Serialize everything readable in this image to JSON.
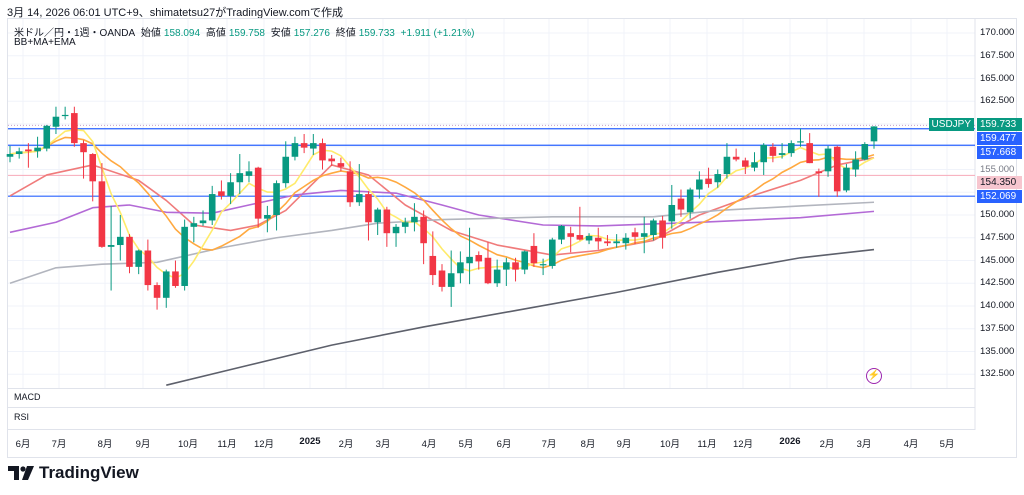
{
  "caption": "3月 14, 2026 06:01 UTC+9、shimatetsu27がTradingView.comで作成",
  "legend": {
    "symbol": "米ドル／円・1週・OANDA",
    "open_label": "始値",
    "open": "158.094",
    "high_label": "高値",
    "high": "159.758",
    "low_label": "安値",
    "low": "157.276",
    "close_label": "終値",
    "close": "159.733",
    "change": "+1.911 (+1.21%)"
  },
  "indicators_label": "BB+MA+EMA",
  "price_axis": [
    "170.000",
    "167.500",
    "165.000",
    "162.500",
    "155.000",
    "150.000",
    "147.500",
    "145.000",
    "142.500",
    "140.000",
    "137.500",
    "135.000",
    "132.500"
  ],
  "tags": {
    "symbol": "USDJPY",
    "last": "159.733",
    "level1": "159.477",
    "level2": "157.668",
    "level3": "154.350",
    "level4": "152.069"
  },
  "panes": {
    "macd": "MACD",
    "rsi": "RSI"
  },
  "time_axis": [
    "6月",
    "7月",
    "8月",
    "9月",
    "10月",
    "11月",
    "12月",
    "2025",
    "2月",
    "3月",
    "4月",
    "5月",
    "6月",
    "7月",
    "8月",
    "9月",
    "10月",
    "11月",
    "12月",
    "2026",
    "2月",
    "3月",
    "4月",
    "5月"
  ],
  "brand": "TradingView",
  "colors": {
    "up": "#089981",
    "down": "#f23645",
    "level": "#2962ff",
    "pink_level": "#f7a9b8"
  },
  "chart_data": {
    "type": "candlestick",
    "symbol": "USDJPY",
    "interval": "1W",
    "ylim": [
      130.5,
      171
    ],
    "horizontal_levels": [
      159.477,
      157.668,
      152.069
    ],
    "pink_level": 154.35,
    "last_price": 159.733,
    "candles": [
      [
        156.4,
        157.6,
        155.8,
        156.7
      ],
      [
        156.7,
        157.4,
        156.2,
        157.0
      ],
      [
        157.2,
        157.9,
        155.2,
        157.0
      ],
      [
        157.0,
        158.6,
        156.3,
        157.4
      ],
      [
        157.3,
        159.9,
        157.0,
        159.8
      ],
      [
        159.7,
        161.9,
        158.9,
        160.8
      ],
      [
        160.9,
        161.9,
        160.5,
        161.0
      ],
      [
        161.2,
        161.9,
        157.5,
        157.9
      ],
      [
        157.9,
        158.2,
        154.0,
        156.9
      ],
      [
        156.7,
        156.8,
        151.5,
        153.7
      ],
      [
        153.7,
        155.7,
        146.4,
        146.5
      ],
      [
        146.5,
        151.0,
        141.7,
        146.7
      ],
      [
        146.7,
        150.0,
        145.0,
        147.6
      ],
      [
        147.6,
        147.9,
        143.6,
        144.3
      ],
      [
        144.3,
        146.2,
        143.5,
        146.1
      ],
      [
        146.1,
        147.3,
        141.7,
        142.3
      ],
      [
        142.3,
        142.6,
        139.6,
        140.9
      ],
      [
        140.9,
        144.0,
        139.8,
        143.8
      ],
      [
        143.8,
        145.0,
        142.0,
        142.2
      ],
      [
        142.2,
        149.5,
        141.7,
        148.7
      ],
      [
        148.7,
        149.8,
        147.0,
        149.1
      ],
      [
        149.1,
        150.5,
        148.8,
        149.4
      ],
      [
        149.4,
        153.2,
        148.9,
        152.3
      ],
      [
        152.6,
        153.8,
        151.7,
        152.1
      ],
      [
        152.1,
        154.6,
        151.2,
        153.6
      ],
      [
        153.6,
        156.7,
        152.3,
        154.6
      ],
      [
        154.3,
        155.9,
        153.6,
        154.8
      ],
      [
        155.2,
        155.3,
        148.6,
        149.6
      ],
      [
        149.6,
        151.0,
        148.1,
        150.0
      ],
      [
        150.0,
        153.8,
        148.3,
        153.5
      ],
      [
        153.5,
        158.1,
        153.0,
        156.4
      ],
      [
        156.4,
        158.6,
        156.0,
        157.9
      ],
      [
        157.9,
        158.9,
        156.8,
        157.4
      ],
      [
        157.3,
        158.9,
        156.6,
        157.9
      ],
      [
        157.9,
        158.4,
        155.0,
        156.0
      ],
      [
        156.2,
        156.6,
        155.4,
        155.9
      ],
      [
        155.7,
        156.3,
        154.8,
        155.3
      ],
      [
        154.8,
        155.9,
        150.9,
        151.4
      ],
      [
        151.4,
        155.6,
        151.0,
        152.3
      ],
      [
        152.3,
        152.6,
        147.2,
        149.2
      ],
      [
        149.2,
        150.8,
        147.8,
        150.6
      ],
      [
        150.6,
        150.9,
        146.5,
        148.0
      ],
      [
        148.0,
        149.0,
        146.5,
        148.7
      ],
      [
        148.7,
        149.7,
        148.0,
        149.2
      ],
      [
        149.2,
        151.3,
        148.2,
        149.8
      ],
      [
        149.8,
        150.5,
        144.6,
        146.9
      ],
      [
        145.5,
        148.2,
        142.3,
        143.4
      ],
      [
        143.9,
        144.6,
        141.6,
        142.1
      ],
      [
        142.1,
        146.1,
        139.9,
        143.6
      ],
      [
        143.6,
        146.0,
        142.5,
        144.8
      ],
      [
        144.7,
        148.6,
        142.4,
        145.4
      ],
      [
        145.6,
        146.0,
        144.0,
        144.9
      ],
      [
        145.3,
        147.0,
        142.4,
        142.5
      ],
      [
        142.5,
        145.1,
        142.1,
        144.0
      ],
      [
        144.0,
        145.3,
        142.2,
        144.8
      ],
      [
        144.8,
        145.3,
        142.7,
        144.0
      ],
      [
        144.0,
        146.1,
        143.5,
        146.0
      ],
      [
        146.6,
        148.0,
        144.3,
        144.7
      ],
      [
        144.5,
        145.2,
        143.4,
        144.6
      ],
      [
        144.4,
        147.5,
        144.1,
        147.3
      ],
      [
        147.3,
        148.9,
        146.8,
        148.8
      ],
      [
        148.0,
        148.7,
        145.9,
        147.6
      ],
      [
        147.8,
        150.9,
        147.2,
        147.3
      ],
      [
        147.2,
        148.0,
        146.8,
        147.7
      ],
      [
        147.5,
        148.6,
        146.2,
        147.1
      ],
      [
        147.1,
        147.8,
        146.6,
        146.9
      ],
      [
        146.9,
        147.9,
        146.4,
        147.1
      ],
      [
        146.9,
        148.0,
        146.2,
        147.5
      ],
      [
        148.1,
        148.6,
        146.8,
        147.6
      ],
      [
        147.6,
        149.8,
        145.8,
        148.0
      ],
      [
        147.8,
        149.6,
        147.2,
        149.4
      ],
      [
        149.4,
        149.9,
        146.3,
        147.5
      ],
      [
        149.3,
        153.3,
        148.5,
        151.1
      ],
      [
        151.8,
        152.8,
        149.8,
        150.6
      ],
      [
        150.3,
        153.0,
        149.6,
        152.8
      ],
      [
        152.8,
        154.8,
        151.8,
        153.9
      ],
      [
        154.0,
        155.2,
        153.0,
        153.4
      ],
      [
        153.6,
        155.0,
        153.0,
        154.5
      ],
      [
        154.5,
        157.9,
        154.0,
        156.4
      ],
      [
        156.4,
        157.3,
        155.9,
        156.1
      ],
      [
        156.0,
        156.3,
        154.5,
        155.3
      ],
      [
        155.2,
        156.9,
        154.8,
        155.8
      ],
      [
        155.8,
        157.9,
        154.4,
        157.7
      ],
      [
        157.5,
        157.9,
        155.8,
        156.5
      ],
      [
        156.6,
        157.9,
        156.2,
        156.8
      ],
      [
        156.8,
        158.2,
        156.4,
        157.9
      ],
      [
        158.0,
        159.5,
        157.5,
        158.1
      ],
      [
        157.9,
        159.0,
        155.7,
        155.7
      ],
      [
        154.8,
        155.1,
        152.0,
        154.6
      ],
      [
        154.8,
        157.6,
        154.2,
        157.3
      ],
      [
        157.5,
        157.6,
        152.0,
        152.6
      ],
      [
        152.7,
        155.6,
        152.5,
        155.2
      ],
      [
        155.0,
        157.0,
        154.2,
        156.1
      ],
      [
        156.1,
        158.0,
        156.0,
        157.8
      ],
      [
        158.094,
        159.758,
        157.276,
        159.733
      ]
    ],
    "ma_fast_period": 5,
    "ma_mid_period": 13,
    "series_sparse": [
      {
        "name": "ma-red",
        "color": "#f07b7b",
        "points": [
          [
            0,
            152.1
          ],
          [
            4,
            154.4
          ],
          [
            9,
            155.5
          ],
          [
            14,
            153.8
          ],
          [
            17,
            151.6
          ],
          [
            20,
            148.9
          ],
          [
            24,
            148.3
          ],
          [
            27,
            148.9
          ],
          [
            30,
            150.5
          ],
          [
            35,
            155.5
          ],
          [
            39,
            154.4
          ],
          [
            43,
            151.1
          ],
          [
            48,
            148.3
          ],
          [
            53,
            146.7
          ],
          [
            59,
            145.6
          ],
          [
            64,
            146.1
          ],
          [
            70,
            147.2
          ],
          [
            75,
            150.0
          ],
          [
            81,
            152.2
          ],
          [
            86,
            153.8
          ],
          [
            90,
            155.5
          ],
          [
            94,
            156.3
          ]
        ]
      },
      {
        "name": "ma-purple",
        "color": "#b36ad6",
        "points": [
          [
            0,
            148.1
          ],
          [
            5,
            149.2
          ],
          [
            9,
            150.8
          ],
          [
            13,
            151.1
          ],
          [
            17,
            150.3
          ],
          [
            22,
            150.2
          ],
          [
            26,
            151.1
          ],
          [
            31,
            152.2
          ],
          [
            36,
            152.7
          ],
          [
            42,
            152.4
          ],
          [
            47,
            151.1
          ],
          [
            51,
            150.0
          ],
          [
            58,
            148.9
          ],
          [
            64,
            148.8
          ],
          [
            75,
            149.2
          ],
          [
            86,
            149.7
          ],
          [
            94,
            150.4
          ]
        ]
      },
      {
        "name": "ma-lightgray",
        "color": "#b2b5be",
        "points": [
          [
            0,
            142.5
          ],
          [
            5,
            144.2
          ],
          [
            10,
            144.6
          ],
          [
            16,
            144.8
          ],
          [
            23,
            146.4
          ],
          [
            29,
            147.5
          ],
          [
            35,
            148.3
          ],
          [
            40,
            149.1
          ],
          [
            47,
            149.5
          ],
          [
            59,
            149.8
          ],
          [
            70,
            149.8
          ],
          [
            77,
            150.5
          ],
          [
            86,
            151.0
          ],
          [
            94,
            151.4
          ]
        ]
      },
      {
        "name": "ma-darkgray",
        "color": "#5d606b",
        "points": [
          [
            17,
            131.3
          ],
          [
            26,
            133.5
          ],
          [
            35,
            135.7
          ],
          [
            45,
            137.7
          ],
          [
            55,
            139.5
          ],
          [
            66,
            141.5
          ],
          [
            77,
            143.7
          ],
          [
            86,
            145.3
          ],
          [
            94,
            146.2
          ]
        ]
      }
    ]
  }
}
